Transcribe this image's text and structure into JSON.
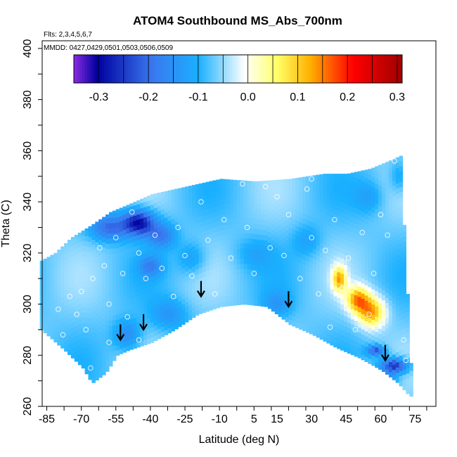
{
  "chart_data": {
    "type": "heatmap",
    "title": "ATOM4 Southbound MS_Abs_700nm",
    "flights_label": "Flts: 2,3,4,5,6,7",
    "dates_label": "MMDD: 0427,0429,0501,0503,0506,0509",
    "xlabel": "Latitude (deg N)",
    "ylabel": "Theta (C)",
    "xlim": [
      -87,
      84
    ],
    "ylim": [
      260,
      403
    ],
    "x_ticks": [
      "-85",
      "-70",
      "-55",
      "-40",
      "-25",
      "-10",
      "5",
      "15",
      "30",
      "45",
      "60",
      "75"
    ],
    "x_tick_values": [
      -85,
      -70,
      -55,
      -40,
      -25,
      -10,
      5,
      15,
      30,
      45,
      60,
      75
    ],
    "y_ticks": [
      "260",
      "280",
      "300",
      "320",
      "340",
      "360",
      "380",
      "400"
    ],
    "y_tick_values": [
      260,
      280,
      300,
      320,
      340,
      360,
      380,
      400
    ],
    "colorbar": {
      "range": [
        -0.35,
        0.31
      ],
      "ticks": [
        "-0.3",
        "-0.2",
        "-0.1",
        "0.0",
        "0.1",
        "0.2",
        "0.3"
      ],
      "tick_values": [
        -0.3,
        -0.2,
        -0.1,
        0.0,
        0.1,
        0.2,
        0.3
      ],
      "colors": [
        "#8a2be2",
        "#0000a0",
        "#3a78ef",
        "#1ab0ff",
        "#ffffff",
        "#ffff66",
        "#ffb000",
        "#ff0000",
        "#a00000"
      ],
      "color_positions": [
        0.0,
        0.07,
        0.24,
        0.38,
        0.52,
        0.62,
        0.72,
        0.85,
        1.0
      ]
    },
    "domain_upper": [
      [
        -88,
        317
      ],
      [
        -82,
        320
      ],
      [
        -75,
        326
      ],
      [
        -66,
        331
      ],
      [
        -58,
        336
      ],
      [
        -50,
        339
      ],
      [
        -40,
        343
      ],
      [
        -25,
        346
      ],
      [
        -10,
        349
      ],
      [
        5,
        348
      ],
      [
        20,
        349
      ],
      [
        35,
        351
      ],
      [
        45,
        351
      ],
      [
        55,
        353
      ],
      [
        63,
        356
      ],
      [
        68,
        358
      ]
    ],
    "domain_lower": [
      [
        -88,
        290
      ],
      [
        -78,
        282
      ],
      [
        -70,
        275
      ],
      [
        -66,
        269
      ],
      [
        -60,
        273
      ],
      [
        -55,
        280
      ],
      [
        -50,
        282
      ],
      [
        -40,
        285
      ],
      [
        -30,
        290
      ],
      [
        -20,
        296
      ],
      [
        -10,
        299
      ],
      [
        0,
        300
      ],
      [
        10,
        299
      ],
      [
        20,
        292
      ],
      [
        30,
        288
      ],
      [
        40,
        283
      ],
      [
        50,
        279
      ],
      [
        60,
        274
      ],
      [
        67,
        269
      ],
      [
        72,
        264
      ]
    ],
    "domain_right": [
      [
        68,
        358
      ],
      [
        70,
        330
      ],
      [
        72,
        300
      ],
      [
        73,
        280
      ],
      [
        72,
        264
      ]
    ],
    "anomalies": [
      {
        "lat": -45,
        "theta": 332,
        "value": -0.3,
        "sx": 7,
        "sy": 5
      },
      {
        "lat": -58,
        "theta": 330,
        "value": -0.2,
        "sx": 8,
        "sy": 5
      },
      {
        "lat": -35,
        "theta": 327,
        "value": -0.18,
        "sx": 6,
        "sy": 5
      },
      {
        "lat": -22,
        "theta": 318,
        "value": -0.13,
        "sx": 6,
        "sy": 6
      },
      {
        "lat": -40,
        "theta": 315,
        "value": -0.16,
        "sx": 5,
        "sy": 4
      },
      {
        "lat": -32,
        "theta": 296,
        "value": -0.14,
        "sx": 8,
        "sy": 6
      },
      {
        "lat": -50,
        "theta": 288,
        "value": -0.16,
        "sx": 6,
        "sy": 6
      },
      {
        "lat": 5,
        "theta": 320,
        "value": -0.11,
        "sx": 8,
        "sy": 6
      },
      {
        "lat": 15,
        "theta": 300,
        "value": -0.13,
        "sx": 6,
        "sy": 5
      },
      {
        "lat": 28,
        "theta": 325,
        "value": -0.12,
        "sx": 6,
        "sy": 6
      },
      {
        "lat": 55,
        "theta": 342,
        "value": -0.12,
        "sx": 6,
        "sy": 6
      },
      {
        "lat": 68,
        "theta": 350,
        "value": -0.13,
        "sx": 4,
        "sy": 6
      },
      {
        "lat": 42,
        "theta": 310,
        "value": 0.11,
        "sx": 3,
        "sy": 5
      },
      {
        "lat": 50,
        "theta": 302,
        "value": 0.12,
        "sx": 5,
        "sy": 5
      },
      {
        "lat": 56,
        "theta": 297,
        "value": 0.13,
        "sx": 6,
        "sy": 6
      },
      {
        "lat": 58,
        "theta": 282,
        "value": -0.23,
        "sx": 4,
        "sy": 2
      },
      {
        "lat": 66,
        "theta": 276,
        "value": -0.28,
        "sx": 6,
        "sy": 3
      },
      {
        "lat": 62,
        "theta": 270,
        "value": -0.2,
        "sx": 5,
        "sy": 3
      }
    ],
    "background_value": -0.07,
    "sample_points": [
      {
        "lat": -80,
        "theta": 298
      },
      {
        "lat": -78,
        "theta": 288
      },
      {
        "lat": -75,
        "theta": 303
      },
      {
        "lat": -72,
        "theta": 296
      },
      {
        "lat": -70,
        "theta": 305
      },
      {
        "lat": -68,
        "theta": 290
      },
      {
        "lat": -65,
        "theta": 310
      },
      {
        "lat": -62,
        "theta": 322
      },
      {
        "lat": -60,
        "theta": 315
      },
      {
        "lat": -58,
        "theta": 300
      },
      {
        "lat": -55,
        "theta": 326
      },
      {
        "lat": -52,
        "theta": 312
      },
      {
        "lat": -50,
        "theta": 295
      },
      {
        "lat": -48,
        "theta": 336
      },
      {
        "lat": -45,
        "theta": 320
      },
      {
        "lat": -42,
        "theta": 310
      },
      {
        "lat": -38,
        "theta": 327
      },
      {
        "lat": -35,
        "theta": 314
      },
      {
        "lat": -30,
        "theta": 303
      },
      {
        "lat": -28,
        "theta": 330
      },
      {
        "lat": -25,
        "theta": 319
      },
      {
        "lat": -22,
        "theta": 311
      },
      {
        "lat": -18,
        "theta": 340
      },
      {
        "lat": -15,
        "theta": 325
      },
      {
        "lat": -12,
        "theta": 304
      },
      {
        "lat": -8,
        "theta": 333
      },
      {
        "lat": -5,
        "theta": 318
      },
      {
        "lat": 0,
        "theta": 347
      },
      {
        "lat": 2,
        "theta": 330
      },
      {
        "lat": 5,
        "theta": 312
      },
      {
        "lat": 10,
        "theta": 346
      },
      {
        "lat": 12,
        "theta": 322
      },
      {
        "lat": 15,
        "theta": 342
      },
      {
        "lat": 18,
        "theta": 319
      },
      {
        "lat": 20,
        "theta": 335
      },
      {
        "lat": 25,
        "theta": 310
      },
      {
        "lat": 28,
        "theta": 345
      },
      {
        "lat": 30,
        "theta": 326
      },
      {
        "lat": 33,
        "theta": 304
      },
      {
        "lat": 36,
        "theta": 321
      },
      {
        "lat": 38,
        "theta": 291
      },
      {
        "lat": 40,
        "theta": 333
      },
      {
        "lat": 43,
        "theta": 306
      },
      {
        "lat": 46,
        "theta": 318
      },
      {
        "lat": 49,
        "theta": 290
      },
      {
        "lat": 52,
        "theta": 328
      },
      {
        "lat": 55,
        "theta": 296
      },
      {
        "lat": 57,
        "theta": 312
      },
      {
        "lat": 60,
        "theta": 335
      },
      {
        "lat": 63,
        "theta": 327
      },
      {
        "lat": 66,
        "theta": 356
      },
      {
        "lat": 70,
        "theta": 286
      },
      {
        "lat": 71,
        "theta": 278
      },
      {
        "lat": -66,
        "theta": 275
      },
      {
        "lat": -70,
        "theta": 269
      },
      {
        "lat": -58,
        "theta": 285
      },
      {
        "lat": -45,
        "theta": 286
      },
      {
        "lat": 30,
        "theta": 349
      }
    ],
    "arrows": [
      {
        "lat": -53,
        "theta": 286,
        "dir": "down"
      },
      {
        "lat": -43,
        "theta": 290,
        "dir": "down"
      },
      {
        "lat": -18,
        "theta": 303,
        "dir": "down"
      },
      {
        "lat": 20,
        "theta": 299,
        "dir": "down"
      },
      {
        "lat": 62,
        "theta": 278,
        "dir": "down"
      }
    ]
  }
}
